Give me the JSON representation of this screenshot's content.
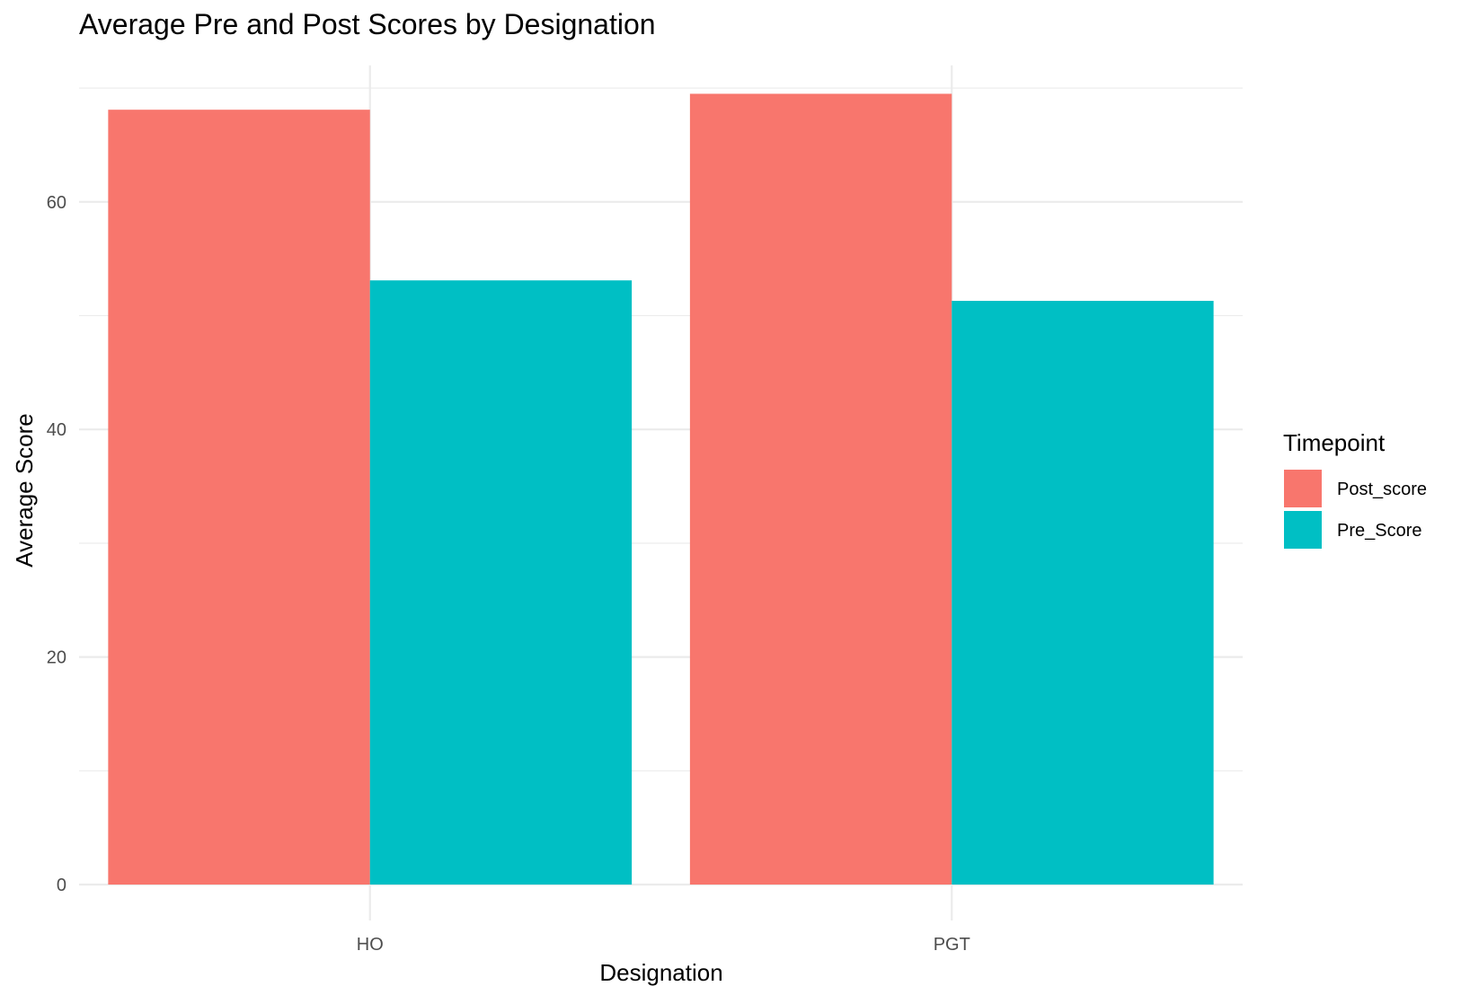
{
  "chart_data": {
    "type": "bar",
    "title": "Average Pre and Post Scores by Designation",
    "xlabel": "Designation",
    "ylabel": "Average Score",
    "categories": [
      "HO",
      "PGT"
    ],
    "series": [
      {
        "name": "Post_score",
        "values": [
          68.1,
          69.5
        ],
        "color": "#F8766D"
      },
      {
        "name": "Pre_Score",
        "values": [
          53.1,
          51.3
        ],
        "color": "#00BFC4"
      }
    ],
    "ylim": [
      0,
      72
    ],
    "y_ticks": [
      0,
      20,
      40,
      60
    ],
    "grid": true,
    "legend": {
      "title": "Timepoint",
      "placement": "right"
    }
  }
}
